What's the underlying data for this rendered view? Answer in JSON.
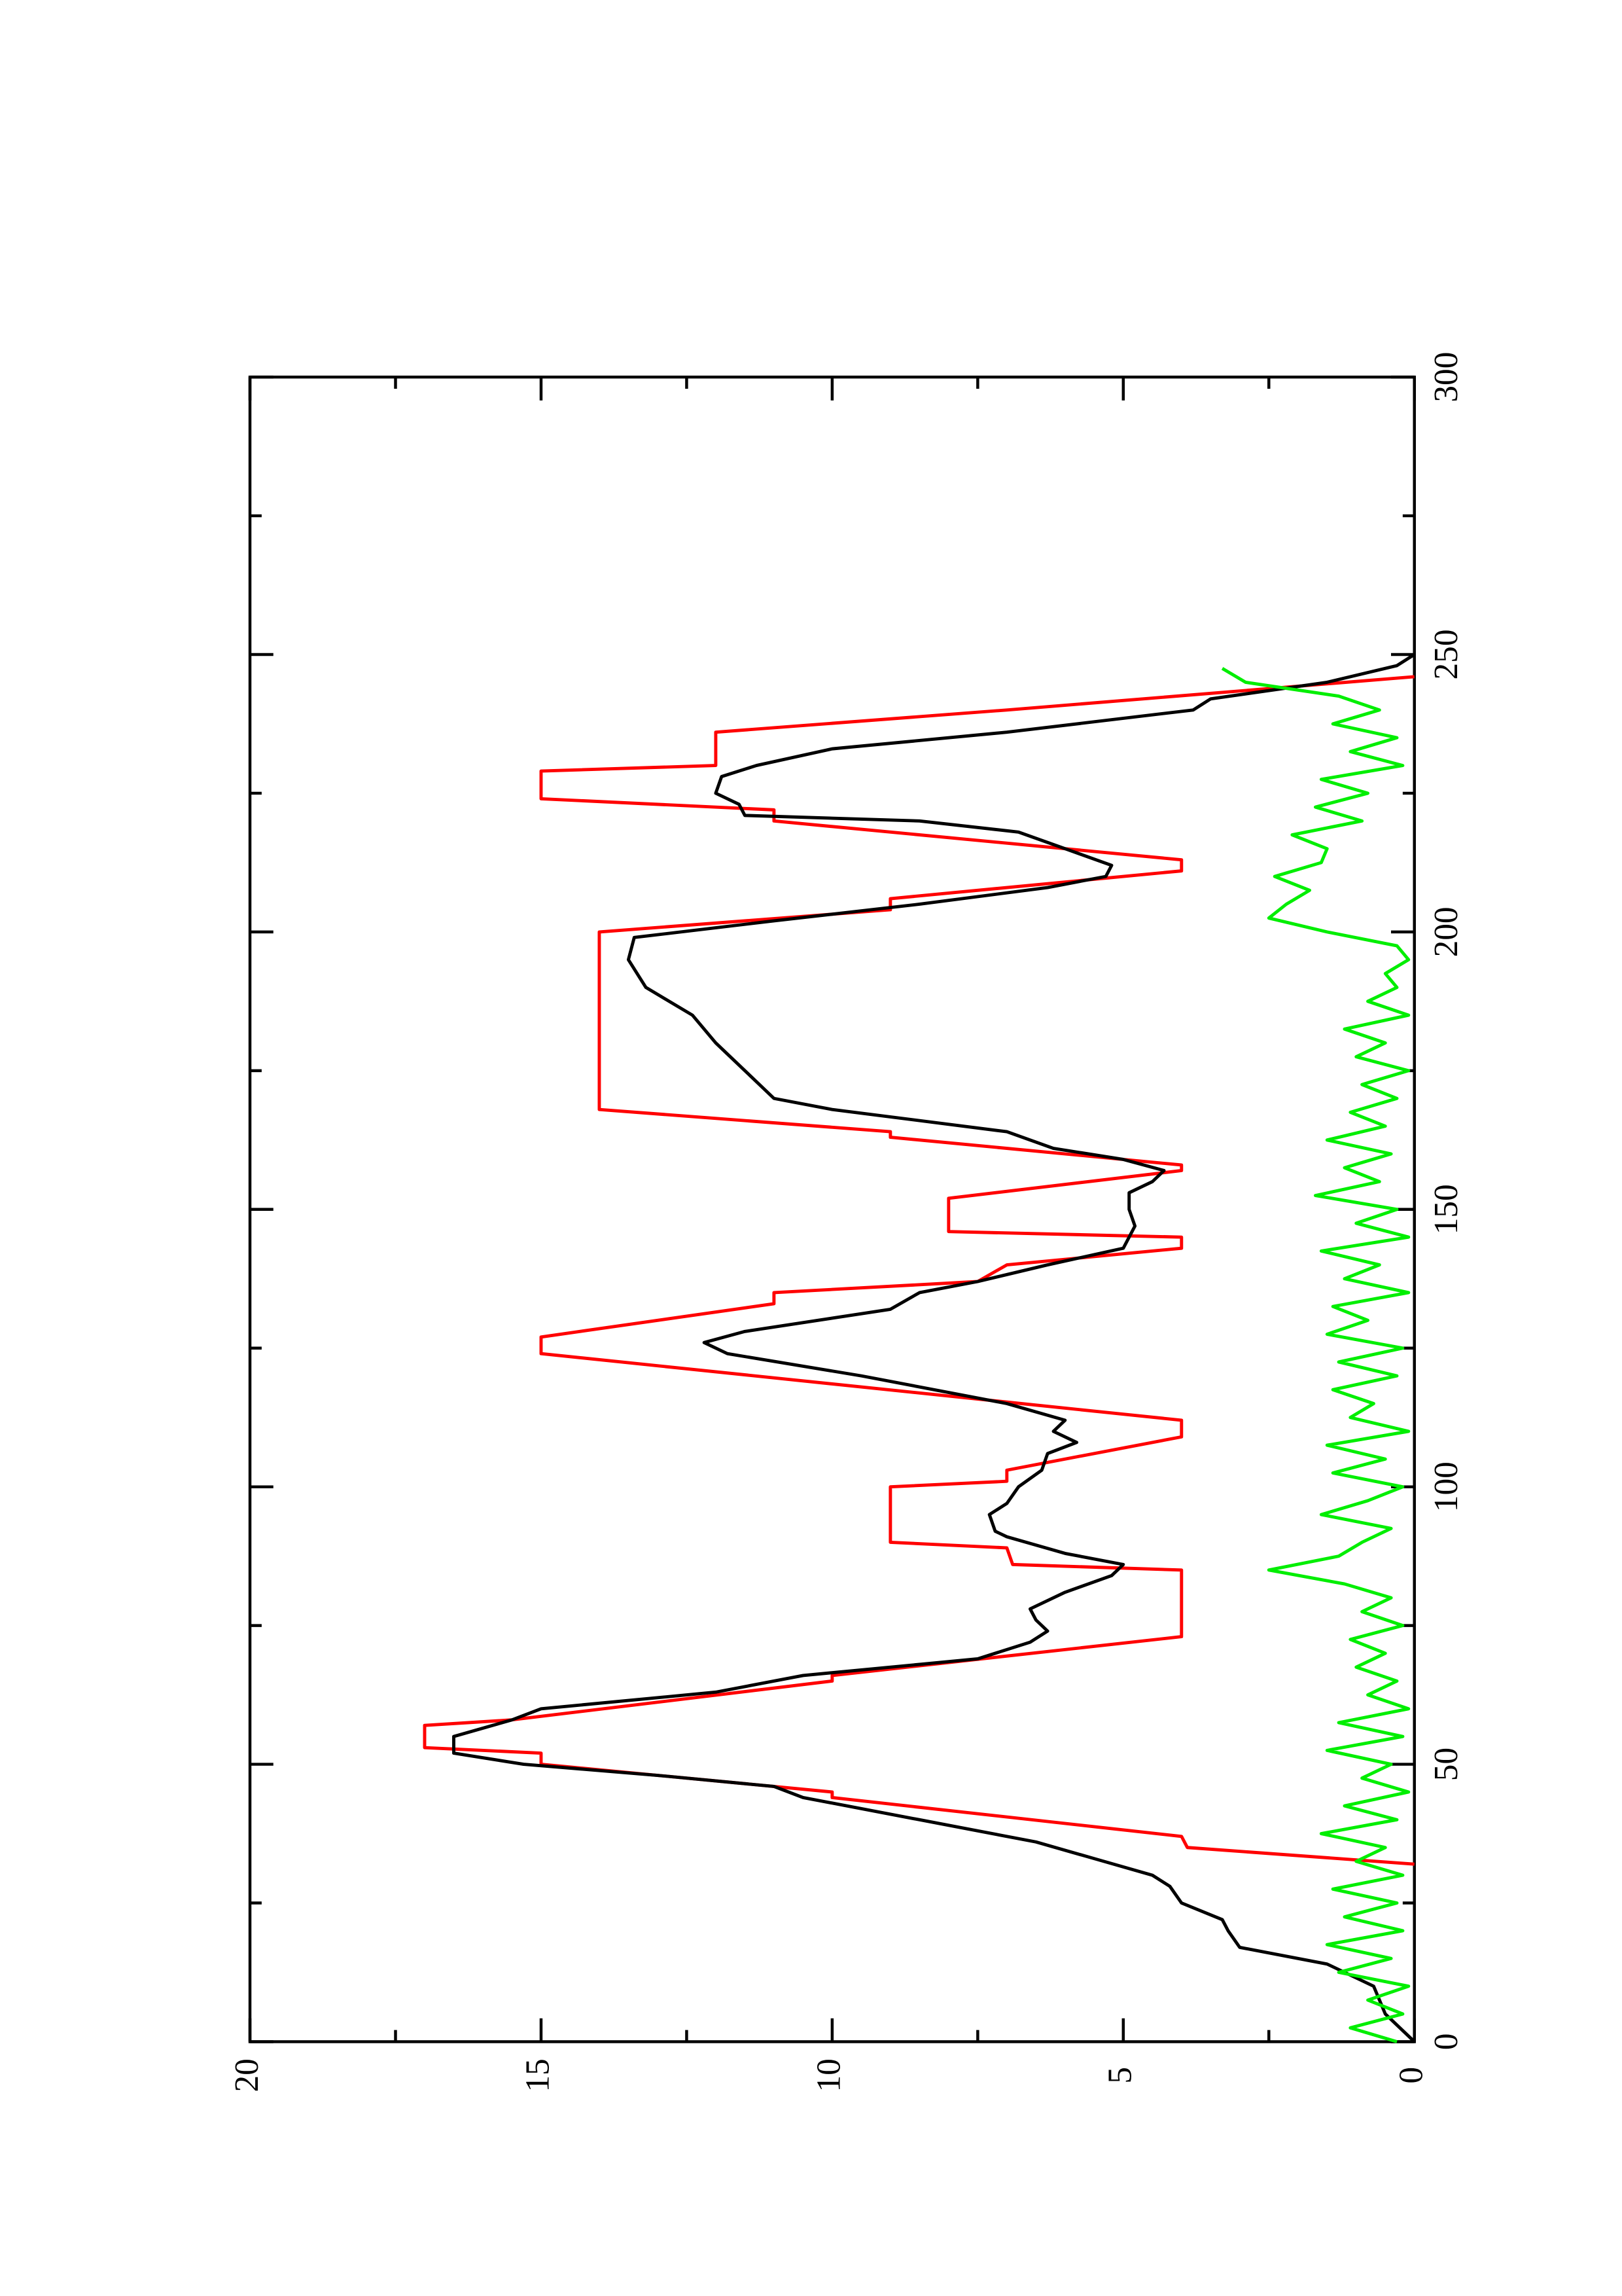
{
  "chart_data": {
    "type": "line",
    "xlim": [
      0,
      300
    ],
    "xticks": [
      0,
      50,
      100,
      150,
      200,
      250,
      300
    ],
    "xminor_ticks": [
      25,
      75,
      125,
      175,
      225,
      275
    ],
    "ylim": [
      0,
      20
    ],
    "yticks": [
      0,
      5,
      10,
      15,
      20
    ],
    "yminor_ticks": [
      2.5,
      7.5,
      12.5,
      17.5
    ],
    "rotated": true,
    "series": [
      {
        "color": "#ff0000",
        "x": [
          32,
          35,
          37,
          44,
          45,
          50,
          52,
          53,
          57,
          58,
          65,
          66,
          73,
          85,
          86,
          89,
          90,
          100,
          101,
          103,
          109,
          112,
          124,
          127,
          133,
          135,
          137,
          140,
          143,
          145,
          146,
          152,
          157,
          158,
          163,
          164,
          168,
          200,
          204,
          206,
          211,
          213,
          220,
          222,
          224,
          229,
          230,
          236,
          240,
          246
        ],
        "values": [
          0,
          3.9,
          4,
          10,
          10,
          15,
          15,
          17,
          17,
          15.5,
          10,
          10,
          4,
          4,
          6.9,
          7,
          9,
          9,
          7,
          7,
          4,
          4,
          15,
          15,
          11,
          11,
          7.5,
          7,
          4,
          4,
          8,
          8,
          4,
          4,
          9,
          9,
          14,
          14,
          9,
          9,
          4,
          4,
          11,
          11,
          15,
          15,
          12,
          12,
          7,
          0
        ]
      },
      {
        "color": "#000000",
        "x": [
          0,
          5,
          10,
          14,
          17,
          20,
          22,
          25,
          28,
          30,
          33,
          36,
          40,
          44,
          46,
          48,
          50,
          52,
          55,
          58,
          60,
          63,
          66,
          69,
          72,
          74,
          76,
          78,
          81,
          84,
          86,
          88,
          91,
          92,
          95,
          97,
          100,
          103,
          106,
          108,
          110,
          112,
          115,
          120,
          124,
          126,
          128,
          132,
          135,
          137,
          140,
          143,
          147,
          150,
          153,
          155,
          157,
          159,
          161,
          164,
          168,
          170,
          175,
          180,
          185,
          190,
          195,
          199,
          202,
          205,
          208,
          210,
          212,
          215,
          218,
          220,
          221,
          223,
          225,
          228,
          230,
          233,
          236,
          240,
          242,
          245,
          248,
          250
        ],
        "values": [
          0,
          0.5,
          0.7,
          1.5,
          3,
          3.2,
          3.3,
          4,
          4.2,
          4.5,
          5.5,
          6.5,
          8.5,
          10.5,
          11,
          13,
          15.3,
          16.5,
          16.5,
          15.5,
          15,
          12,
          10.5,
          7.5,
          6.6,
          6.3,
          6.5,
          6.6,
          6,
          5.2,
          5,
          6,
          7,
          7.2,
          7.3,
          7,
          6.8,
          6.4,
          6.3,
          5.8,
          6.2,
          6,
          7,
          9.5,
          11.8,
          12.2,
          11.5,
          9,
          8.5,
          7.5,
          6.3,
          5,
          4.8,
          4.9,
          4.9,
          4.5,
          4.3,
          5,
          6.2,
          7,
          10,
          11,
          11.5,
          12,
          12.4,
          13.2,
          13.5,
          13.4,
          11,
          8.5,
          6.3,
          5.3,
          5.2,
          6,
          6.8,
          8.5,
          11.5,
          11.6,
          12,
          11.9,
          11.3,
          10,
          7,
          3.8,
          3.5,
          1.5,
          0.3,
          0
        ]
      },
      {
        "color": "#00ee00",
        "x": [
          0,
          2.5,
          5,
          7.5,
          10,
          12.5,
          15,
          17.5,
          20,
          22.5,
          25,
          27.5,
          30,
          32.5,
          35,
          37.5,
          40,
          42.5,
          45,
          47.5,
          50,
          52.5,
          55,
          57.5,
          60,
          62.5,
          65,
          67.5,
          70,
          72.5,
          75,
          77.5,
          80,
          82.5,
          85,
          87.5,
          90,
          92.5,
          95,
          97.5,
          100,
          102.5,
          105,
          107.5,
          110,
          112.5,
          115,
          117.5,
          120,
          122.5,
          125,
          127.5,
          130,
          132.5,
          135,
          137.5,
          140,
          142.5,
          145,
          147.5,
          150,
          152.5,
          155,
          157.5,
          160,
          162.5,
          165,
          167.5,
          170,
          172.5,
          175,
          177.5,
          180,
          182.5,
          185,
          187.5,
          190,
          192.5,
          195,
          197.5,
          200,
          202.5,
          205,
          207.5,
          210,
          212.5,
          215,
          217.5,
          220,
          222.5,
          225,
          227.5,
          230,
          232.5,
          235,
          237.5,
          240,
          242.5,
          245,
          247.5
        ],
        "values": [
          0.3,
          1.1,
          0.2,
          0.8,
          0.1,
          1.3,
          0.4,
          1.5,
          0.2,
          1.2,
          0.3,
          1.4,
          0.2,
          1.0,
          0.5,
          1.6,
          0.3,
          1.2,
          0.1,
          0.9,
          0.4,
          1.5,
          0.2,
          1.3,
          0.1,
          0.8,
          0.3,
          1.0,
          0.5,
          1.1,
          0.2,
          0.9,
          0.4,
          1.2,
          2.5,
          1.3,
          0.9,
          0.4,
          1.6,
          0.8,
          0.2,
          1.4,
          0.5,
          1.5,
          0.1,
          1.1,
          0.7,
          1.4,
          0.3,
          1.3,
          0.2,
          1.5,
          0.8,
          1.4,
          0.1,
          1.2,
          0.6,
          1.6,
          0.1,
          1.0,
          0.3,
          1.7,
          0.6,
          1.2,
          0.4,
          1.5,
          0.5,
          1.1,
          0.3,
          0.9,
          0.1,
          1.0,
          0.5,
          1.2,
          0.1,
          0.8,
          0.3,
          0.5,
          0.1,
          0.3,
          1.5,
          2.5,
          2.2,
          1.8,
          2.4,
          1.6,
          1.5,
          2.1,
          0.9,
          1.7,
          0.8,
          1.6,
          0.2,
          1.1,
          0.3,
          1.4,
          0.6,
          1.3,
          2.9,
          3.3
        ]
      }
    ]
  }
}
